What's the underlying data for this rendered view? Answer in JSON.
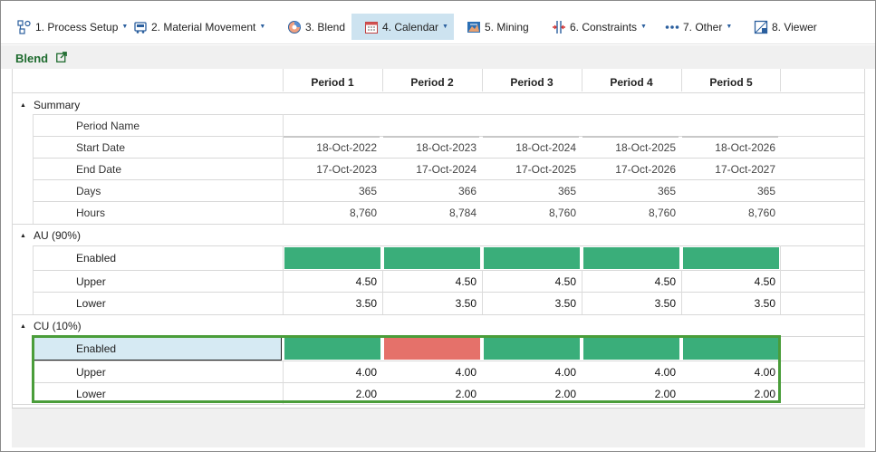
{
  "toolbar": {
    "items": [
      {
        "label": "1. Process Setup",
        "icon": "process-setup-icon",
        "dropdown": true
      },
      {
        "label": "2. Material Movement",
        "icon": "material-movement-icon",
        "dropdown": true
      },
      {
        "label": "3. Blend",
        "icon": "blend-icon",
        "dropdown": false
      },
      {
        "label": "4. Calendar",
        "icon": "calendar-icon",
        "dropdown": true,
        "active": true
      },
      {
        "label": "5. Mining",
        "icon": "mining-icon",
        "dropdown": false
      },
      {
        "label": "6. Constraints",
        "icon": "constraints-icon",
        "dropdown": true
      },
      {
        "label": "7. Other",
        "icon": "more-dots-icon",
        "dropdown": true
      },
      {
        "label": "8. Viewer",
        "icon": "viewer-icon",
        "dropdown": false
      }
    ]
  },
  "panel": {
    "title": "Blend",
    "open_icon": "external-link-icon"
  },
  "periods": [
    "Period 1",
    "Period 2",
    "Period 3",
    "Period 4",
    "Period 5"
  ],
  "summary": {
    "label": "Summary",
    "rows": [
      {
        "label": "Period Name",
        "values": [
          "",
          "",
          "",
          "",
          ""
        ]
      },
      {
        "label": "Start Date",
        "values": [
          "18-Oct-2022",
          "18-Oct-2023",
          "18-Oct-2024",
          "18-Oct-2025",
          "18-Oct-2026"
        ]
      },
      {
        "label": "End Date",
        "values": [
          "17-Oct-2023",
          "17-Oct-2024",
          "17-Oct-2025",
          "17-Oct-2026",
          "17-Oct-2027"
        ]
      },
      {
        "label": "Days",
        "values": [
          "365",
          "366",
          "365",
          "365",
          "365"
        ]
      },
      {
        "label": "Hours",
        "values": [
          "8,760",
          "8,784",
          "8,760",
          "8,760",
          "8,760"
        ]
      }
    ]
  },
  "au": {
    "label": "AU (90%)",
    "enabled_label": "Enabled",
    "enabled": [
      true,
      true,
      true,
      true,
      true
    ],
    "upper_label": "Upper",
    "upper": [
      "4.50",
      "4.50",
      "4.50",
      "4.50",
      "4.50"
    ],
    "lower_label": "Lower",
    "lower": [
      "3.50",
      "3.50",
      "3.50",
      "3.50",
      "3.50"
    ]
  },
  "cu": {
    "label": "CU (10%)",
    "enabled_label": "Enabled",
    "enabled": [
      true,
      false,
      true,
      true,
      true
    ],
    "upper_label": "Upper",
    "upper": [
      "4.00",
      "4.00",
      "4.00",
      "4.00",
      "4.00"
    ],
    "lower_label": "Lower",
    "lower": [
      "2.00",
      "2.00",
      "2.00",
      "2.00",
      "2.00"
    ]
  },
  "colors": {
    "enabled_on": "#3aae7a",
    "enabled_off": "#e5716a",
    "selection_border": "#4a9d3a",
    "title_green": "#1e6b2e",
    "active_tab": "#cde3f0"
  }
}
